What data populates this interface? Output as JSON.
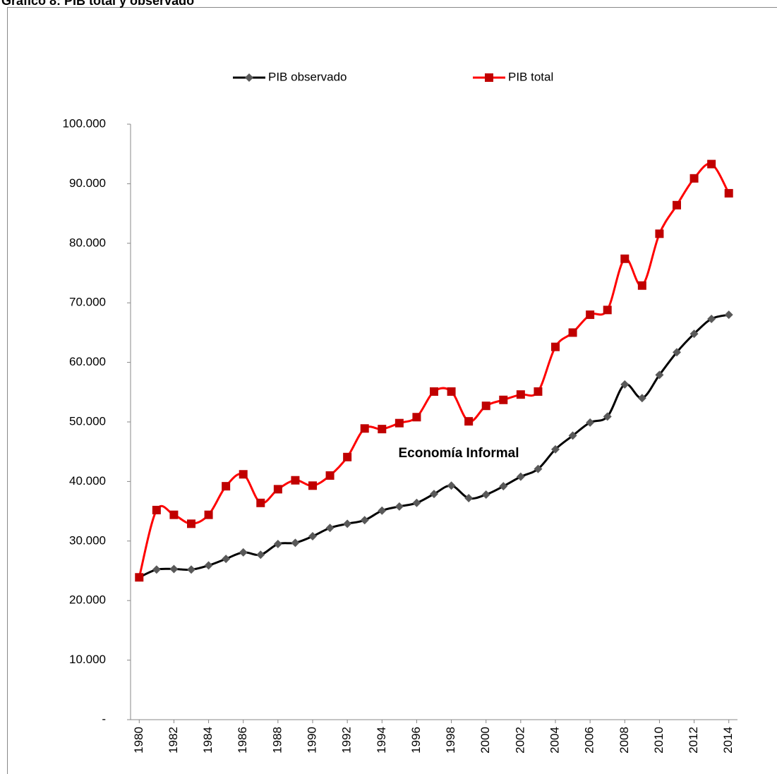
{
  "chart_data": {
    "type": "line",
    "title": "Gráfico 8: PIB total y observado",
    "annotation": "Economía Informal",
    "x": [
      1980,
      1981,
      1982,
      1983,
      1984,
      1985,
      1986,
      1987,
      1988,
      1989,
      1990,
      1991,
      1992,
      1993,
      1994,
      1995,
      1996,
      1997,
      1998,
      1999,
      2000,
      2001,
      2002,
      2003,
      2004,
      2005,
      2006,
      2007,
      2008,
      2009,
      2010,
      2011,
      2012,
      2013,
      2014
    ],
    "xlim": [
      1979.5,
      2014.5
    ],
    "xticks": [
      1980,
      1982,
      1984,
      1986,
      1988,
      1990,
      1992,
      1994,
      1996,
      1998,
      2000,
      2002,
      2004,
      2006,
      2008,
      2010,
      2012,
      2014
    ],
    "ylim": [
      0,
      100000
    ],
    "yticks": [
      {
        "value": 0,
        "label": "-"
      },
      {
        "value": 10000,
        "label": "10.000"
      },
      {
        "value": 20000,
        "label": "20.000"
      },
      {
        "value": 30000,
        "label": "30.000"
      },
      {
        "value": 40000,
        "label": "40.000"
      },
      {
        "value": 50000,
        "label": "50.000"
      },
      {
        "value": 60000,
        "label": "60.000"
      },
      {
        "value": 70000,
        "label": "70.000"
      },
      {
        "value": 80000,
        "label": "80.000"
      },
      {
        "value": 90000,
        "label": "90.000"
      },
      {
        "value": 100000,
        "label": "100.000"
      }
    ],
    "legend": "top",
    "series": [
      {
        "name": "PIB observado",
        "color": "#000000",
        "marker_color": "#595959",
        "marker": "diamond",
        "values": [
          23900,
          25200,
          25300,
          25200,
          25900,
          27000,
          28100,
          27700,
          29500,
          29700,
          30800,
          32200,
          32900,
          33500,
          35100,
          35800,
          36400,
          37900,
          39300,
          37200,
          37800,
          39200,
          40800,
          42100,
          45400,
          47700,
          49900,
          50900,
          56300,
          54000,
          57900,
          61700,
          64800,
          67300,
          68000
        ]
      },
      {
        "name": "PIB total",
        "color": "#ff0000",
        "marker_color": "#c00000",
        "marker": "square",
        "values": [
          23900,
          35200,
          34400,
          32900,
          34400,
          39200,
          41200,
          36400,
          38700,
          40200,
          39300,
          41000,
          44100,
          48900,
          48800,
          49800,
          50800,
          55100,
          55100,
          50100,
          52700,
          53700,
          54600,
          55100,
          62600,
          65000,
          68000,
          68800,
          77400,
          72900,
          81600,
          86400,
          90900,
          93300,
          88400
        ]
      }
    ]
  }
}
